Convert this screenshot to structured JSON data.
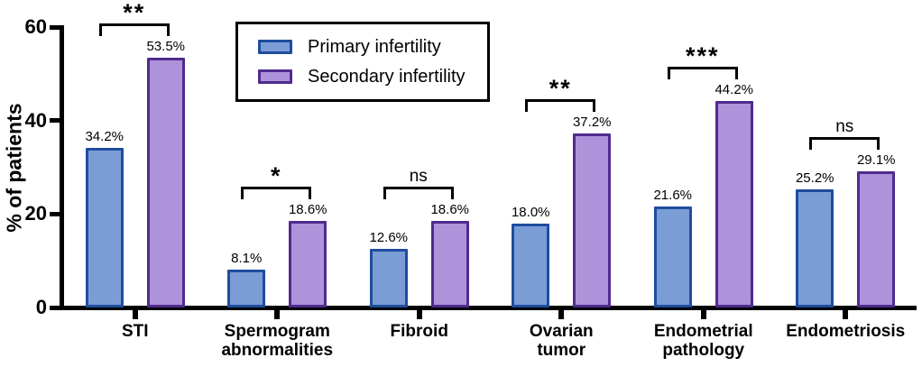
{
  "chart_data": {
    "type": "bar",
    "title": "",
    "xlabel": "",
    "ylabel": "% of patients",
    "ylim": [
      0,
      60
    ],
    "yticks": [
      0,
      20,
      40,
      60
    ],
    "grid": false,
    "legend_position": "top-left-inset",
    "categories": [
      "STI",
      "Spermogram abnormalities",
      "Fibroid",
      "Ovarian tumor",
      "Endometrial pathology",
      "Endometriosis"
    ],
    "series": [
      {
        "name": "Primary infertility",
        "color": "#7B9DD6",
        "border_color": "#1F4D9E",
        "values": [
          34.2,
          8.1,
          12.6,
          18.0,
          21.6,
          25.2
        ]
      },
      {
        "name": "Secondary infertility",
        "color": "#AF93DA",
        "border_color": "#4F2B8E",
        "values": [
          53.5,
          18.6,
          18.6,
          37.2,
          44.2,
          29.1
        ]
      }
    ],
    "value_labels": [
      [
        "34.2%",
        "8.1%",
        "12.6%",
        "18.0%",
        "21.6%",
        "25.2%"
      ],
      [
        "53.5%",
        "18.6%",
        "18.6%",
        "37.2%",
        "44.2%",
        "29.1%"
      ]
    ],
    "significance": [
      "**",
      "*",
      "ns",
      "**",
      "***",
      "ns"
    ],
    "axis_color": "#000000",
    "background_color": "#ffffff"
  }
}
